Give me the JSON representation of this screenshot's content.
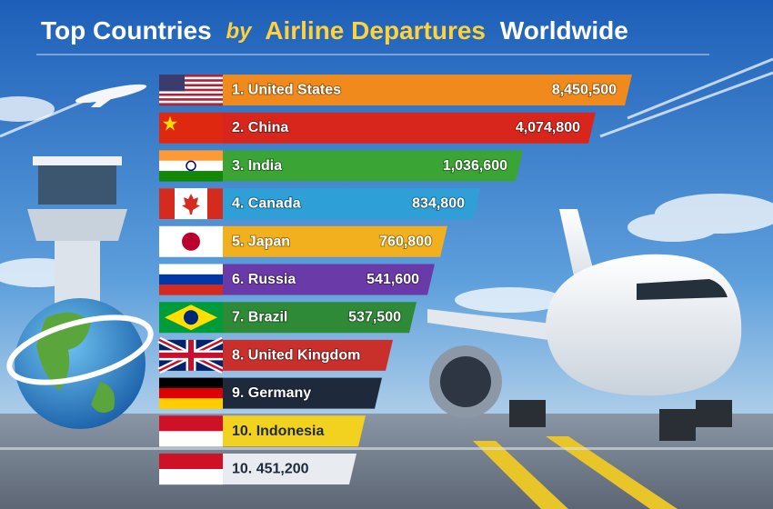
{
  "header": {
    "title_parts": [
      "Top Countries",
      "by",
      "Airline Departures",
      "Worldwide"
    ]
  },
  "rows": [
    {
      "label": "1. United States",
      "value": "8,450,500"
    },
    {
      "label": "2. China",
      "value": "4,074,800"
    },
    {
      "label": "3. India",
      "value": "1,036,600"
    },
    {
      "label": "4. Canada",
      "value": "834,800"
    },
    {
      "label": "5. Japan",
      "value": "760,800"
    },
    {
      "label": "6. Russia",
      "value": "541,600"
    },
    {
      "label": "7. Brazil",
      "value": "537,500"
    },
    {
      "label": "8. United Kingdom"
    },
    {
      "label": "9. Germany"
    },
    {
      "label": "10. Indonesia"
    },
    {
      "label": "10. 451,200"
    }
  ]
}
